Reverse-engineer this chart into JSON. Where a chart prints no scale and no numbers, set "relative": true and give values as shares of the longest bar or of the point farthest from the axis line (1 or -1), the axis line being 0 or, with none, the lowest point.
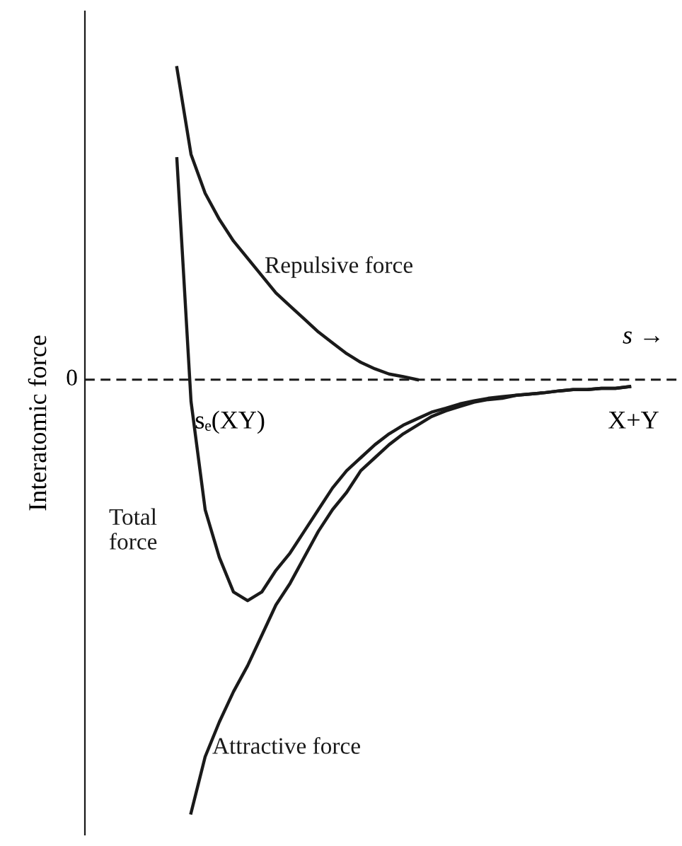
{
  "chart_data": {
    "type": "line",
    "relative": true,
    "ylabel": "Interatomic force",
    "xlabel": "s →",
    "legend": false,
    "marker": "none",
    "line_style": "solid",
    "categories": [
      null,
      null,
      null,
      null,
      null,
      null,
      null,
      null,
      null,
      null,
      null,
      null,
      null,
      null,
      null,
      null,
      null,
      null,
      null,
      null,
      null,
      null,
      null,
      null,
      null,
      null,
      null,
      null,
      null,
      null,
      null,
      null,
      null
    ],
    "series": [
      {
        "name": "Repulsive force",
        "color": "#1a1a1a",
        "values": [
          0.72,
          0.52,
          0.43,
          0.37,
          0.32,
          0.28,
          0.24,
          0.2,
          0.17,
          0.14,
          0.11,
          0.085,
          0.06,
          0.04,
          0.025,
          0.013,
          0.007,
          0,
          null,
          null,
          null,
          null,
          null,
          null,
          null,
          null,
          null,
          null,
          null,
          null,
          null,
          null,
          null
        ]
      },
      {
        "name": "Total force",
        "color": "#1a1a1a",
        "values": [
          0.51,
          -0.05,
          -0.3,
          -0.41,
          -0.49,
          -0.51,
          -0.49,
          -0.44,
          -0.4,
          -0.35,
          -0.3,
          -0.25,
          -0.21,
          -0.18,
          -0.15,
          -0.125,
          -0.105,
          -0.09,
          -0.075,
          -0.066,
          -0.056,
          -0.049,
          -0.043,
          -0.039,
          -0.036,
          -0.033,
          -0.03,
          -0.026,
          -0.023,
          -0.023,
          -0.02,
          -0.02,
          -0.016
        ]
      },
      {
        "name": "Attractive force",
        "color": "#1a1a1a",
        "values": [
          null,
          -1,
          -0.87,
          -0.79,
          -0.72,
          -0.66,
          -0.59,
          -0.52,
          -0.47,
          -0.41,
          -0.35,
          -0.3,
          -0.26,
          -0.21,
          -0.18,
          -0.15,
          -0.125,
          -0.105,
          -0.085,
          -0.072,
          -0.062,
          -0.052,
          -0.046,
          -0.043,
          -0.036,
          -0.033,
          -0.03,
          -0.026,
          -0.023,
          -0.023,
          -0.02,
          -0.02,
          -0.016
        ]
      }
    ],
    "ref_lines": [
      {
        "axis": "y",
        "value": 0,
        "label": "0",
        "line_style": "dashed",
        "color": "#1a1a1a"
      }
    ],
    "annotations": [
      "sₑ(XY)",
      "X+Y"
    ]
  }
}
